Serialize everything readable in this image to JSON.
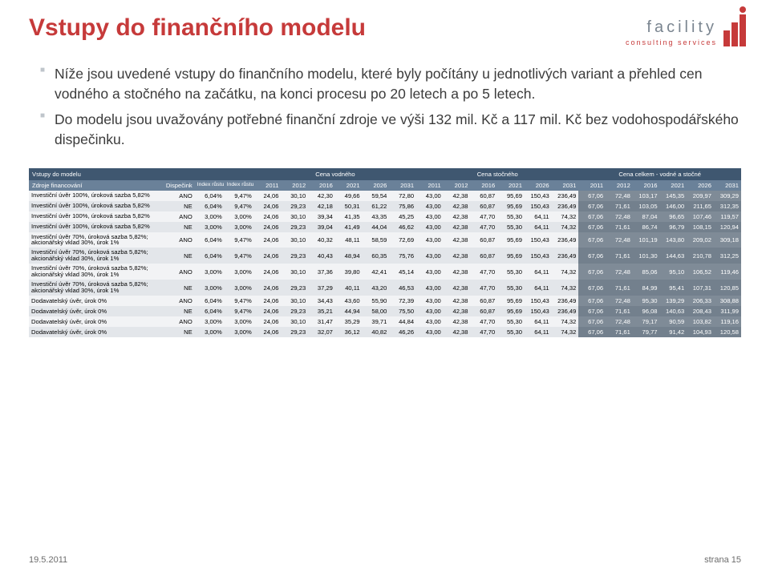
{
  "logo": {
    "name": "facility",
    "sub": "consulting services"
  },
  "title": "Vstupy do finančního modelu",
  "bullets": [
    "Níže jsou uvedené vstupy do finančního modelu, které byly počítány u jednotlivých variant a přehled cen vodného a stočného na začátku, na konci procesu po 20 letech a po 5 letech.",
    "Do modelu jsou uvažovány potřebné finanční zdroje ve výši 132 mil. Kč a 117 mil. Kč bez vodohospodářského dispečinku."
  ],
  "table": {
    "groupHeaders": {
      "model": "Vstupy do modelu",
      "vodne": "Cena vodného",
      "stocne": "Cena stočného",
      "celkem": "Cena celkem - vodné a stočné"
    },
    "cols": {
      "source": "Zdroje financování",
      "disp": "Dispečink",
      "idxV": "Index růstu vodného",
      "idxS": "Index růstu stočného"
    },
    "years": [
      "2011",
      "2012",
      "2016",
      "2021",
      "2026",
      "2031"
    ],
    "rows": [
      {
        "label": "Investiční úvěr 100%, úroková sazba 5,82%",
        "disp": "ANO",
        "iv": "6,04%",
        "is": "9,47%",
        "v": [
          "24,06",
          "30,10",
          "42,30",
          "49,66",
          "59,54",
          "72,80"
        ],
        "s": [
          "43,00",
          "42,38",
          "60,87",
          "95,69",
          "150,43",
          "236,49"
        ],
        "c": [
          "67,06",
          "72,48",
          "103,17",
          "145,35",
          "209,97",
          "309,29"
        ]
      },
      {
        "label": "Investiční úvěr 100%, úroková sazba 5,82%",
        "disp": "NE",
        "iv": "6,04%",
        "is": "9,47%",
        "v": [
          "24,06",
          "29,23",
          "42,18",
          "50,31",
          "61,22",
          "75,86"
        ],
        "s": [
          "43,00",
          "42,38",
          "60,87",
          "95,69",
          "150,43",
          "236,49"
        ],
        "c": [
          "67,06",
          "71,61",
          "103,05",
          "146,00",
          "211,65",
          "312,35"
        ]
      },
      {
        "label": "Investiční úvěr 100%, úroková sazba 5,82%",
        "disp": "ANO",
        "iv": "3,00%",
        "is": "3,00%",
        "v": [
          "24,06",
          "30,10",
          "39,34",
          "41,35",
          "43,35",
          "45,25"
        ],
        "s": [
          "43,00",
          "42,38",
          "47,70",
          "55,30",
          "64,11",
          "74,32"
        ],
        "c": [
          "67,06",
          "72,48",
          "87,04",
          "96,65",
          "107,46",
          "119,57"
        ]
      },
      {
        "label": "Investiční úvěr 100%, úroková sazba 5,82%",
        "disp": "NE",
        "iv": "3,00%",
        "is": "3,00%",
        "v": [
          "24,06",
          "29,23",
          "39,04",
          "41,49",
          "44,04",
          "46,62"
        ],
        "s": [
          "43,00",
          "42,38",
          "47,70",
          "55,30",
          "64,11",
          "74,32"
        ],
        "c": [
          "67,06",
          "71,61",
          "86,74",
          "96,79",
          "108,15",
          "120,94"
        ]
      },
      {
        "label": "Investiční úvěr 70%, úroková sazba 5,82%; akcionářský vklad 30%, úrok 1%",
        "disp": "ANO",
        "iv": "6,04%",
        "is": "9,47%",
        "v": [
          "24,06",
          "30,10",
          "40,32",
          "48,11",
          "58,59",
          "72,69"
        ],
        "s": [
          "43,00",
          "42,38",
          "60,87",
          "95,69",
          "150,43",
          "236,49"
        ],
        "c": [
          "67,06",
          "72,48",
          "101,19",
          "143,80",
          "209,02",
          "309,18"
        ]
      },
      {
        "label": "Investiční úvěr 70%, úroková sazba 5,82%; akcionářský vklad 30%, úrok 1%",
        "disp": "NE",
        "iv": "6,04%",
        "is": "9,47%",
        "v": [
          "24,06",
          "29,23",
          "40,43",
          "48,94",
          "60,35",
          "75,76"
        ],
        "s": [
          "43,00",
          "42,38",
          "60,87",
          "95,69",
          "150,43",
          "236,49"
        ],
        "c": [
          "67,06",
          "71,61",
          "101,30",
          "144,63",
          "210,78",
          "312,25"
        ]
      },
      {
        "label": "Investiční úvěr 70%, úroková sazba 5,82%; akcionářský vklad 30%, úrok 1%",
        "disp": "ANO",
        "iv": "3,00%",
        "is": "3,00%",
        "v": [
          "24,06",
          "30,10",
          "37,36",
          "39,80",
          "42,41",
          "45,14"
        ],
        "s": [
          "43,00",
          "42,38",
          "47,70",
          "55,30",
          "64,11",
          "74,32"
        ],
        "c": [
          "67,06",
          "72,48",
          "85,06",
          "95,10",
          "106,52",
          "119,46"
        ]
      },
      {
        "label": "Investiční úvěr 70%, úroková sazba 5,82%; akcionářský vklad 30%, úrok 1%",
        "disp": "NE",
        "iv": "3,00%",
        "is": "3,00%",
        "v": [
          "24,06",
          "29,23",
          "37,29",
          "40,11",
          "43,20",
          "46,53"
        ],
        "s": [
          "43,00",
          "42,38",
          "47,70",
          "55,30",
          "64,11",
          "74,32"
        ],
        "c": [
          "67,06",
          "71,61",
          "84,99",
          "95,41",
          "107,31",
          "120,85"
        ]
      },
      {
        "label": "Dodavatelský úvěr, úrok 0%",
        "disp": "ANO",
        "iv": "6,04%",
        "is": "9,47%",
        "v": [
          "24,06",
          "30,10",
          "34,43",
          "43,60",
          "55,90",
          "72,39"
        ],
        "s": [
          "43,00",
          "42,38",
          "60,87",
          "95,69",
          "150,43",
          "236,49"
        ],
        "c": [
          "67,06",
          "72,48",
          "95,30",
          "139,29",
          "206,33",
          "308,88"
        ]
      },
      {
        "label": "Dodavatelský úvěr, úrok 0%",
        "disp": "NE",
        "iv": "6,04%",
        "is": "9,47%",
        "v": [
          "24,06",
          "29,23",
          "35,21",
          "44,94",
          "58,00",
          "75,50"
        ],
        "s": [
          "43,00",
          "42,38",
          "60,87",
          "95,69",
          "150,43",
          "236,49"
        ],
        "c": [
          "67,06",
          "71,61",
          "96,08",
          "140,63",
          "208,43",
          "311,99"
        ]
      },
      {
        "label": "Dodavatelský úvěr, úrok 0%",
        "disp": "ANO",
        "iv": "3,00%",
        "is": "3,00%",
        "v": [
          "24,06",
          "30,10",
          "31,47",
          "35,29",
          "39,71",
          "44,84"
        ],
        "s": [
          "43,00",
          "42,38",
          "47,70",
          "55,30",
          "64,11",
          "74,32"
        ],
        "c": [
          "67,06",
          "72,48",
          "79,17",
          "90,59",
          "103,82",
          "119,16"
        ]
      },
      {
        "label": "Dodavatelský úvěr, úrok 0%",
        "disp": "NE",
        "iv": "3,00%",
        "is": "3,00%",
        "v": [
          "24,06",
          "29,23",
          "32,07",
          "36,12",
          "40,82",
          "46,26"
        ],
        "s": [
          "43,00",
          "42,38",
          "47,70",
          "55,30",
          "64,11",
          "74,32"
        ],
        "c": [
          "67,06",
          "71,61",
          "79,77",
          "91,42",
          "104,93",
          "120,58"
        ]
      }
    ]
  },
  "footer": {
    "date": "19.5.2011",
    "page": "strana 15"
  },
  "colors": {
    "accent": "#c63a3a",
    "grpHeader": "#3f5770",
    "subHeader": "#6a8199",
    "rowOdd": "#f2f3f5",
    "rowEven": "#e3e6ea",
    "darkCell": "#7f8b97"
  }
}
